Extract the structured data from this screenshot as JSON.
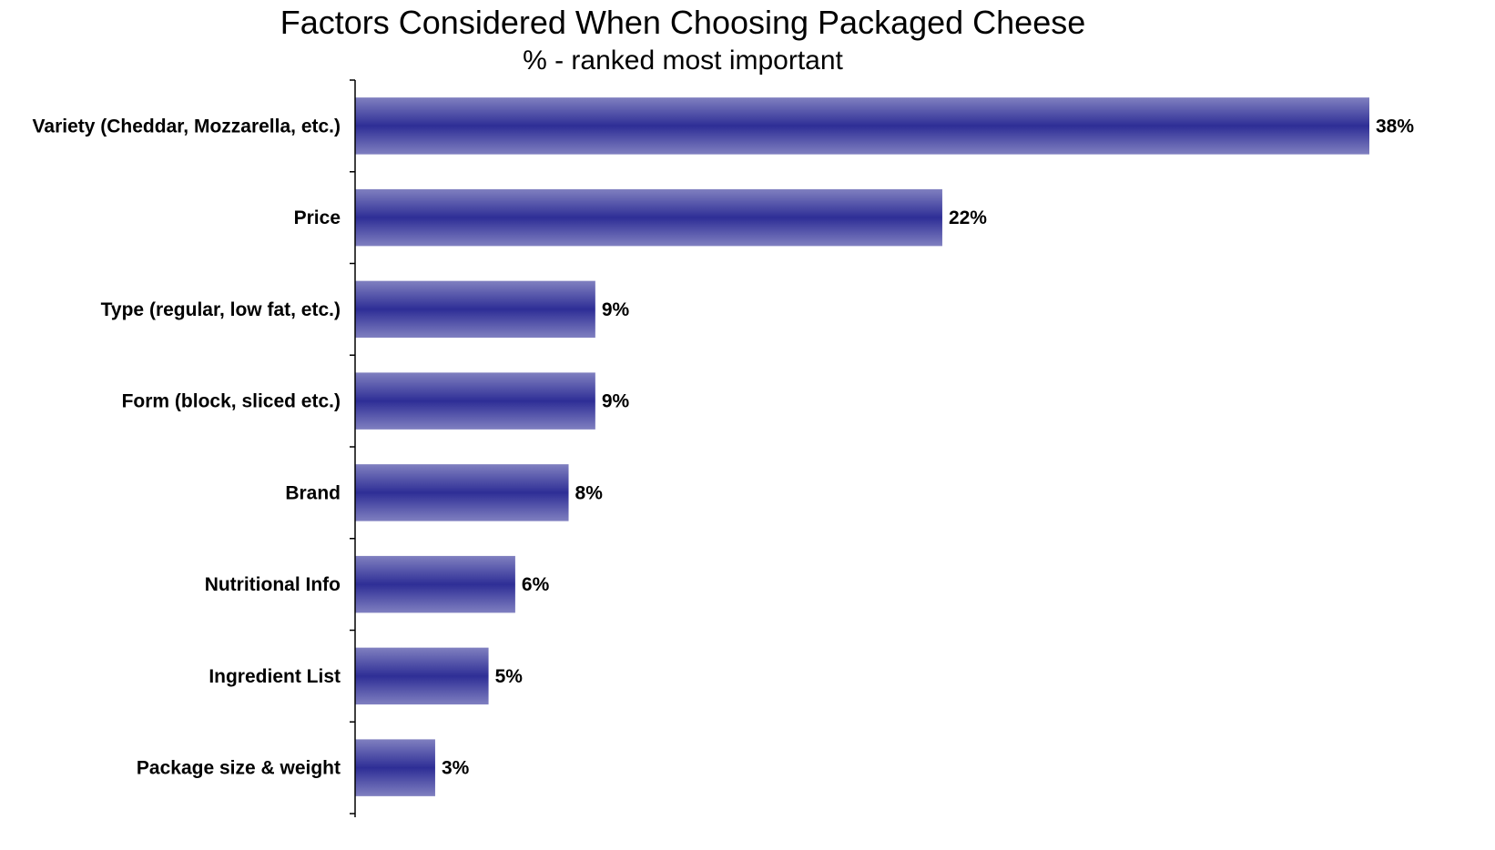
{
  "chart_data": {
    "type": "bar",
    "orientation": "horizontal",
    "title": "Factors Considered When Choosing Packaged Cheese",
    "subtitle": "% - ranked most important",
    "xlabel": "",
    "ylabel": "",
    "categories": [
      "Variety (Cheddar, Mozzarella, etc.)",
      "Price",
      "Type (regular, low fat, etc.)",
      "Form (block, sliced etc.)",
      "Brand",
      "Nutritional Info",
      "Ingredient List",
      "Package size & weight"
    ],
    "values": [
      38,
      22,
      9,
      9,
      8,
      6,
      5,
      3
    ],
    "value_labels": [
      "38%",
      "22%",
      "9%",
      "9%",
      "8%",
      "6%",
      "5%",
      "3%"
    ],
    "xlim": [
      0,
      38
    ],
    "grid": false,
    "legend": "none",
    "colors": {
      "bar_edge": "#8080c0",
      "bar_center": "#2e2e96",
      "axis": "#000000"
    }
  }
}
